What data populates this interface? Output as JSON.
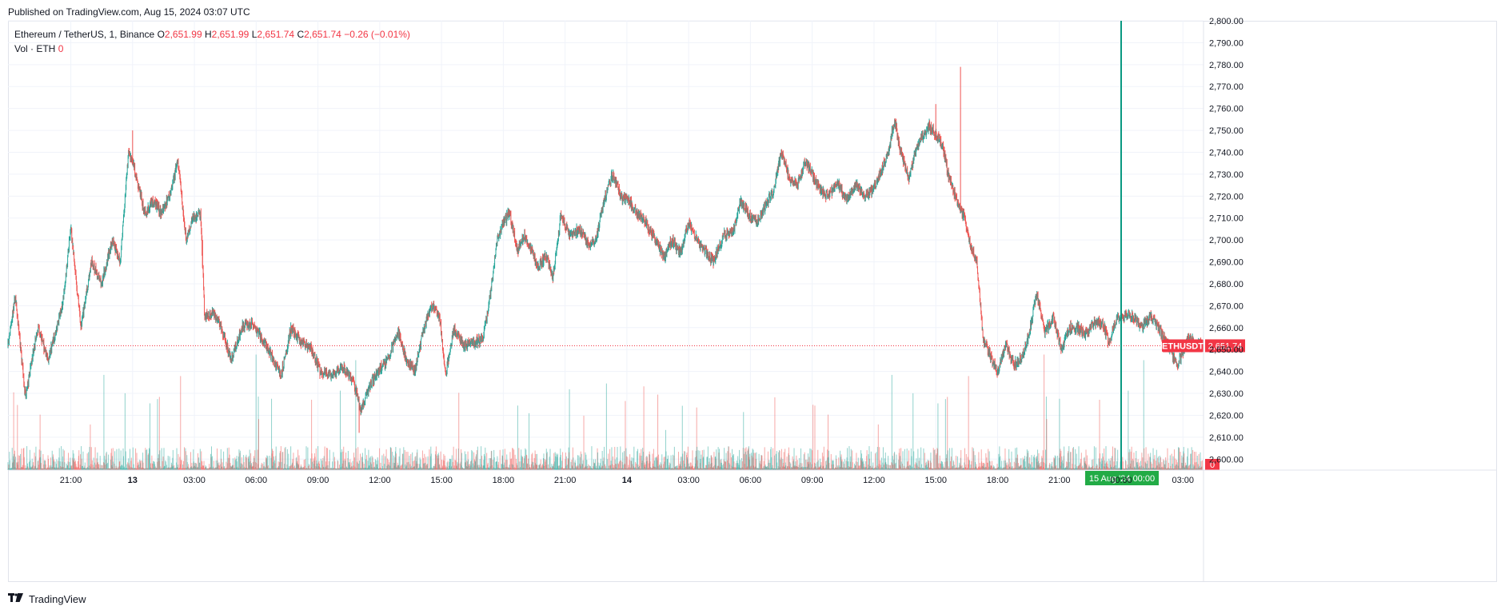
{
  "header": {
    "published": "Published on TradingView.com, Aug 15, 2024 03:07 UTC"
  },
  "legend": {
    "symbol": "Ethereum / TetherUS, 1, Binance",
    "o_label": "O",
    "o": "2,651.99",
    "h_label": "H",
    "h": "2,651.99",
    "l_label": "L",
    "l": "2,651.74",
    "c_label": "C",
    "c": "2,651.74",
    "change": "−0.26 (−0.01%)",
    "vol_label": "Vol · ETH",
    "vol": "0"
  },
  "footer": {
    "brand": "TradingView",
    "logo_icon": "tradingview-logo-icon"
  },
  "colors": {
    "up": "#26a69a",
    "down": "#ef5350",
    "marker": "#089981",
    "price_label": "#f23645",
    "grid": "#f0f3fa"
  },
  "chart_data": {
    "type": "candlestick",
    "title": "Ethereum / TetherUS, 1, Binance",
    "xlabel": "",
    "ylabel": "",
    "ylim": [
      2595,
      2800
    ],
    "y_ticks": [
      "2,600.00",
      "2,610.00",
      "2,620.00",
      "2,630.00",
      "2,640.00",
      "2,650.00",
      "2,660.00",
      "2,670.00",
      "2,680.00",
      "2,690.00",
      "2,700.00",
      "2,710.00",
      "2,720.00",
      "2,730.00",
      "2,740.00",
      "2,750.00",
      "2,760.00",
      "2,770.00",
      "2,780.00",
      "2,790.00",
      "2,800.00"
    ],
    "x_ticks": [
      "21:00",
      "13",
      "03:00",
      "06:00",
      "09:00",
      "12:00",
      "15:00",
      "18:00",
      "21:00",
      "14",
      "03:00",
      "06:00",
      "09:00",
      "12:00",
      "15:00",
      "18:00",
      "21:00",
      "00:00",
      "03:00"
    ],
    "x_tick_hours": [
      21,
      24,
      27,
      30,
      33,
      36,
      39,
      42,
      45,
      48,
      51,
      54,
      57,
      60,
      63,
      66,
      69,
      72,
      75
    ],
    "x_range_hours": [
      17.95,
      76
    ],
    "last_price": 2651.74,
    "last_price_label": "ETHUSDT",
    "last_price_text": "2,651.74",
    "volume_label_text": "0",
    "crosshair": {
      "hour": 72,
      "label": "15 Aug '24   00:00"
    },
    "anchors": [
      [
        18.0,
        2654
      ],
      [
        18.3,
        2675
      ],
      [
        18.8,
        2628
      ],
      [
        19.4,
        2660
      ],
      [
        19.9,
        2645
      ],
      [
        20.6,
        2670
      ],
      [
        21.0,
        2705
      ],
      [
        21.5,
        2660
      ],
      [
        22.0,
        2690
      ],
      [
        22.5,
        2680
      ],
      [
        23.0,
        2700
      ],
      [
        23.4,
        2690
      ],
      [
        23.8,
        2740
      ],
      [
        24.1,
        2732
      ],
      [
        24.6,
        2712
      ],
      [
        25.0,
        2718
      ],
      [
        25.4,
        2712
      ],
      [
        25.8,
        2720
      ],
      [
        26.2,
        2736
      ],
      [
        26.6,
        2700
      ],
      [
        26.9,
        2710
      ],
      [
        27.3,
        2712
      ],
      [
        27.5,
        2665
      ],
      [
        27.9,
        2667
      ],
      [
        28.3,
        2660
      ],
      [
        28.8,
        2645
      ],
      [
        29.3,
        2660
      ],
      [
        29.8,
        2662
      ],
      [
        30.3,
        2655
      ],
      [
        30.7,
        2648
      ],
      [
        31.2,
        2638
      ],
      [
        31.7,
        2660
      ],
      [
        32.2,
        2653
      ],
      [
        32.7,
        2650
      ],
      [
        33.1,
        2640
      ],
      [
        33.6,
        2638
      ],
      [
        34.2,
        2642
      ],
      [
        34.7,
        2636
      ],
      [
        35.1,
        2622
      ],
      [
        35.6,
        2635
      ],
      [
        36.0,
        2641
      ],
      [
        36.4,
        2646
      ],
      [
        36.9,
        2658
      ],
      [
        37.3,
        2645
      ],
      [
        37.7,
        2640
      ],
      [
        38.1,
        2658
      ],
      [
        38.5,
        2670
      ],
      [
        38.9,
        2666
      ],
      [
        39.2,
        2638
      ],
      [
        39.6,
        2660
      ],
      [
        40.1,
        2652
      ],
      [
        40.5,
        2653
      ],
      [
        41.0,
        2655
      ],
      [
        41.3,
        2670
      ],
      [
        41.7,
        2700
      ],
      [
        42.0,
        2708
      ],
      [
        42.3,
        2712
      ],
      [
        42.7,
        2695
      ],
      [
        43.0,
        2702
      ],
      [
        43.4,
        2695
      ],
      [
        43.7,
        2688
      ],
      [
        44.1,
        2693
      ],
      [
        44.4,
        2682
      ],
      [
        44.8,
        2712
      ],
      [
        45.2,
        2702
      ],
      [
        45.7,
        2705
      ],
      [
        46.1,
        2698
      ],
      [
        46.5,
        2700
      ],
      [
        46.9,
        2718
      ],
      [
        47.3,
        2730
      ],
      [
        47.7,
        2720
      ],
      [
        48.1,
        2718
      ],
      [
        48.5,
        2712
      ],
      [
        48.9,
        2708
      ],
      [
        49.4,
        2700
      ],
      [
        49.8,
        2692
      ],
      [
        50.2,
        2700
      ],
      [
        50.6,
        2694
      ],
      [
        51.0,
        2708
      ],
      [
        51.4,
        2700
      ],
      [
        51.8,
        2695
      ],
      [
        52.2,
        2690
      ],
      [
        52.7,
        2702
      ],
      [
        53.2,
        2705
      ],
      [
        53.5,
        2718
      ],
      [
        53.9,
        2712
      ],
      [
        54.3,
        2708
      ],
      [
        54.7,
        2715
      ],
      [
        55.1,
        2722
      ],
      [
        55.5,
        2740
      ],
      [
        55.9,
        2728
      ],
      [
        56.3,
        2726
      ],
      [
        56.7,
        2736
      ],
      [
        57.1,
        2728
      ],
      [
        57.4,
        2722
      ],
      [
        57.8,
        2720
      ],
      [
        58.2,
        2726
      ],
      [
        58.7,
        2718
      ],
      [
        59.1,
        2725
      ],
      [
        59.5,
        2720
      ],
      [
        59.9,
        2722
      ],
      [
        60.3,
        2730
      ],
      [
        60.7,
        2740
      ],
      [
        61.0,
        2755
      ],
      [
        61.3,
        2740
      ],
      [
        61.7,
        2728
      ],
      [
        62.0,
        2740
      ],
      [
        62.4,
        2748
      ],
      [
        62.7,
        2752
      ],
      [
        63.0,
        2748
      ],
      [
        63.3,
        2744
      ],
      [
        63.6,
        2730
      ],
      [
        64.0,
        2718
      ],
      [
        64.4,
        2710
      ],
      [
        64.6,
        2700
      ],
      [
        65.0,
        2690
      ],
      [
        65.3,
        2655
      ],
      [
        65.7,
        2646
      ],
      [
        66.0,
        2640
      ],
      [
        66.4,
        2652
      ],
      [
        66.8,
        2643
      ],
      [
        67.2,
        2646
      ],
      [
        67.6,
        2660
      ],
      [
        67.9,
        2676
      ],
      [
        68.3,
        2658
      ],
      [
        68.7,
        2665
      ],
      [
        69.1,
        2650
      ],
      [
        69.5,
        2660
      ],
      [
        69.9,
        2660
      ],
      [
        70.3,
        2657
      ],
      [
        70.7,
        2662
      ],
      [
        71.1,
        2662
      ],
      [
        71.4,
        2653
      ],
      [
        71.8,
        2664
      ],
      [
        72.3,
        2666
      ],
      [
        72.7,
        2664
      ],
      [
        73.0,
        2660
      ],
      [
        73.4,
        2665
      ],
      [
        73.8,
        2660
      ],
      [
        74.1,
        2655
      ],
      [
        74.4,
        2650
      ],
      [
        74.7,
        2643
      ],
      [
        75.0,
        2648
      ],
      [
        75.3,
        2656
      ],
      [
        75.6,
        2652
      ],
      [
        75.9,
        2652
      ]
    ]
  }
}
